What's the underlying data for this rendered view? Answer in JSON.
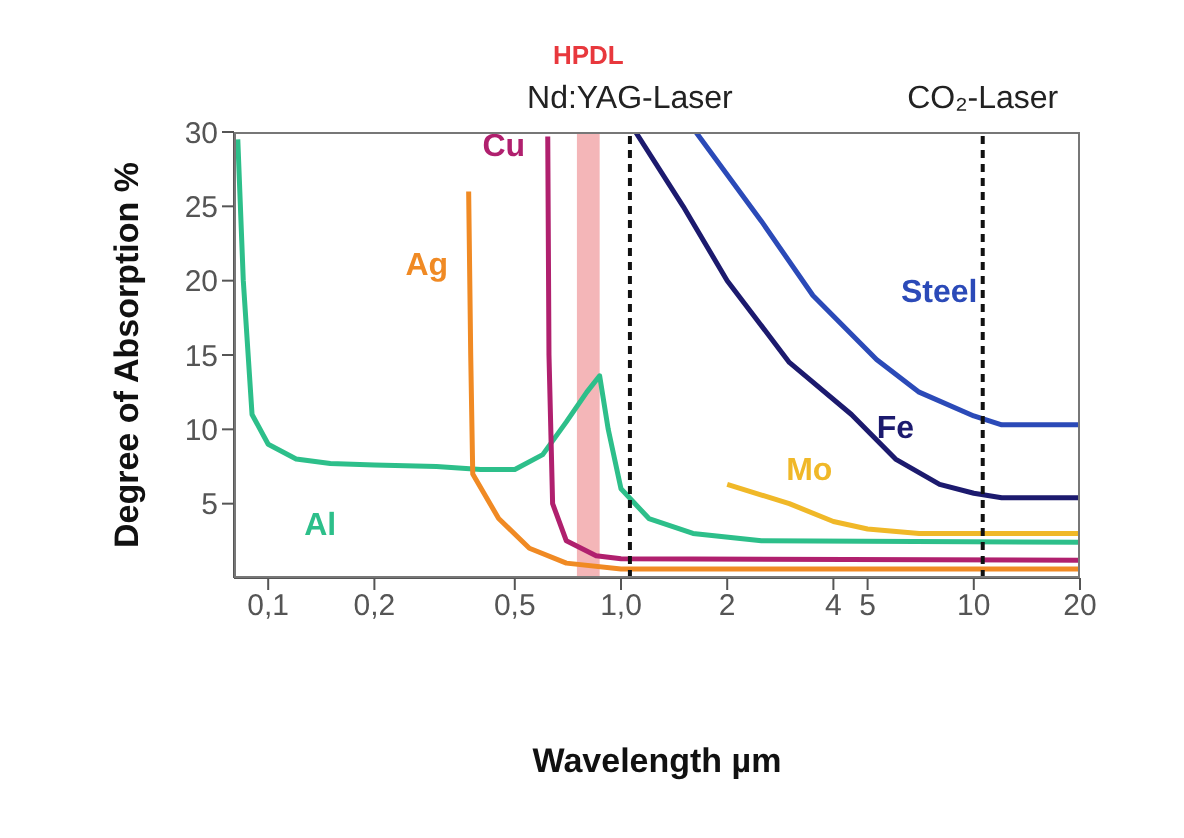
{
  "chart_data": {
    "type": "line",
    "xlabel": "Wavelength µm",
    "ylabel": "Degree of Absorption %",
    "log": "x",
    "xlim": [
      0.08,
      20
    ],
    "ylim": [
      0,
      30
    ],
    "xticks": [
      {
        "value": 0.1,
        "label": "0,1"
      },
      {
        "value": 0.2,
        "label": "0,2"
      },
      {
        "value": 0.5,
        "label": "0,5"
      },
      {
        "value": 1,
        "label": "1,0"
      },
      2,
      4,
      5,
      10,
      20
    ],
    "yticks": [
      5,
      10,
      15,
      20,
      25,
      30
    ],
    "grid": false,
    "legend": false,
    "marker": "none",
    "line_style": "solid",
    "series": [
      {
        "name": "Al",
        "color": "#2dbf8a",
        "x": [
          0.082,
          0.085,
          0.09,
          0.1,
          0.12,
          0.15,
          0.2,
          0.3,
          0.4,
          0.5,
          0.6,
          0.7,
          0.8,
          0.87,
          0.92,
          1,
          1.2,
          1.6,
          2.5,
          20
        ],
        "values": [
          29.5,
          20,
          11,
          9,
          8,
          7.7,
          7.6,
          7.5,
          7.3,
          7.3,
          8.3,
          10.5,
          12.5,
          13.6,
          10,
          6,
          4,
          3,
          2.5,
          2.4
        ]
      },
      {
        "name": "Ag",
        "color": "#f08a24",
        "x": [
          0.37,
          0.375,
          0.38,
          0.45,
          0.55,
          0.7,
          1,
          20
        ],
        "values": [
          26,
          15,
          7,
          4,
          2,
          1,
          0.6,
          0.6
        ]
      },
      {
        "name": "Cu",
        "color": "#b0206e",
        "x": [
          0.62,
          0.625,
          0.64,
          0.7,
          0.85,
          1,
          20
        ],
        "values": [
          29.7,
          15,
          5,
          2.5,
          1.5,
          1.3,
          1.2
        ]
      },
      {
        "name": "Steel",
        "color": "#2b4ab8",
        "x": [
          1.63,
          2.5,
          3.5,
          5.3,
          7,
          10,
          12,
          20
        ],
        "values": [
          30,
          24,
          19,
          14.7,
          12.5,
          10.9,
          10.3,
          10.3
        ]
      },
      {
        "name": "Fe",
        "color": "#1c1a6e",
        "x": [
          1.1,
          1.5,
          2,
          3,
          4.5,
          6,
          8,
          10,
          12,
          20
        ],
        "values": [
          30,
          25,
          20,
          14.5,
          11,
          8,
          6.3,
          5.7,
          5.4,
          5.4
        ]
      },
      {
        "name": "Mo",
        "color": "#f0b828",
        "x": [
          2,
          3,
          4,
          5,
          7,
          20
        ],
        "values": [
          6.3,
          5,
          3.8,
          3.3,
          3,
          3
        ]
      }
    ],
    "bands": [
      {
        "axis": "x",
        "from": 0.75,
        "to": 0.87,
        "label": "HPDL",
        "color": "#f4b6b8"
      }
    ],
    "ref_lines": [
      {
        "axis": "x",
        "value": 1.06,
        "label": "Nd:YAG-Laser",
        "line_style": "dashed"
      },
      {
        "axis": "x",
        "value": 10.6,
        "label": "CO₂-Laser",
        "line_style": "dashed"
      }
    ]
  }
}
